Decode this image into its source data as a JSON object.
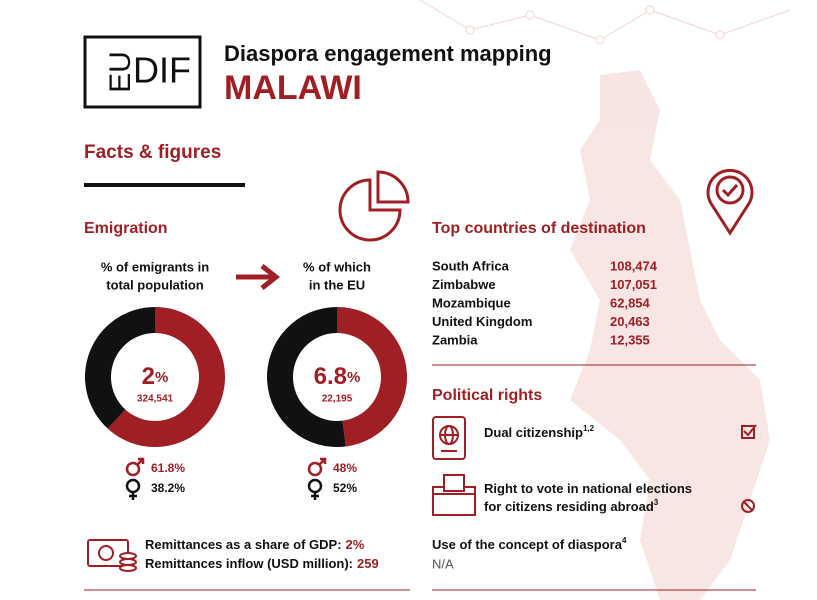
{
  "header": {
    "logo_left": "EU",
    "logo_right": "DIF",
    "title": "Diaspora engagement mapping",
    "country": "MALAWI"
  },
  "section_title": "Facts & figures",
  "emigration": {
    "title": "Emigration",
    "donuts": [
      {
        "label_lines": [
          "% of emigrants in",
          "total population"
        ],
        "value": 2,
        "unit": "%",
        "count": "324,541",
        "male": 61.8,
        "male_label": "61.8%",
        "female": 38.2,
        "female_label": "38.2%"
      },
      {
        "label_lines": [
          "% of which",
          "in the EU"
        ],
        "value": 6.8,
        "unit": "%",
        "count": "22,195",
        "male": 48,
        "male_label": "48%",
        "female": 52,
        "female_label": "52%"
      }
    ]
  },
  "remittances": [
    {
      "label": "Remittances as a share of GDP:",
      "value": "2%"
    },
    {
      "label": "Remittances inflow (USD million):",
      "value": "259"
    }
  ],
  "destinations": {
    "title": "Top countries of destination",
    "rows": [
      [
        "South Africa",
        "108,474"
      ],
      [
        "Zimbabwe",
        "107,051"
      ],
      [
        "Mozambique",
        "62,854"
      ],
      [
        "United Kingdom",
        "20,463"
      ],
      [
        "Zambia",
        "12,355"
      ]
    ]
  },
  "political_rights": {
    "title": "Political rights",
    "items": [
      {
        "lines": [
          "Dual citizenship"
        ],
        "note": "1,2"
      },
      {
        "lines": [
          "Right to vote in national elections",
          "for citizens residing abroad"
        ],
        "note": "3"
      }
    ]
  },
  "diaspora_concept": {
    "label": "Use of the concept of diaspora",
    "note": "4",
    "value": "N/A"
  }
}
